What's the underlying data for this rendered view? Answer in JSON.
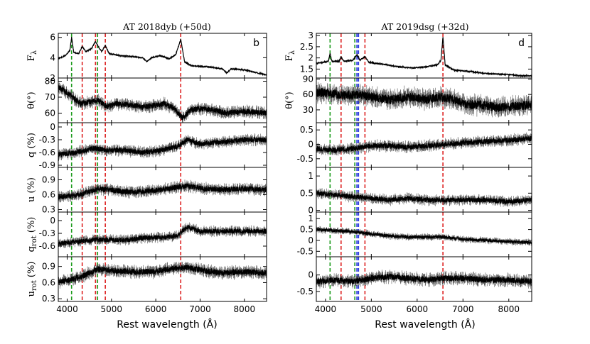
{
  "chart_data": {
    "type": "line",
    "x_label": "Rest wavelength (Å)",
    "xlim": [
      3800,
      8500
    ],
    "x_ticks": [
      4000,
      5000,
      6000,
      7000,
      8000
    ],
    "line_colors": {
      "green": "#1a9a1a",
      "red": "#dd2222",
      "blue": "#2233dd"
    },
    "columns": [
      {
        "title": "AT 2018dyb   (+50d)",
        "letter": "b",
        "vlines": [
          {
            "x": 4100,
            "color": "green"
          },
          {
            "x": 4340,
            "color": "red"
          },
          {
            "x": 4640,
            "color": "red"
          },
          {
            "x": 4686,
            "color": "green"
          },
          {
            "x": 4861,
            "color": "red"
          },
          {
            "x": 6563,
            "color": "red"
          }
        ],
        "panels": [
          {
            "ylabel": "Fλ",
            "ylim": [
              2,
              6.4
            ],
            "ticks": [
              2,
              4,
              6
            ],
            "base": [
              [
                3800,
                3.9
              ],
              [
                3960,
                4.2
              ],
              [
                4060,
                4.7
              ],
              [
                4100,
                6.0
              ],
              [
                4150,
                4.5
              ],
              [
                4260,
                4.4
              ],
              [
                4340,
                5.1
              ],
              [
                4420,
                4.6
              ],
              [
                4550,
                4.9
              ],
              [
                4640,
                5.6
              ],
              [
                4700,
                5.1
              ],
              [
                4780,
                4.6
              ],
              [
                4861,
                5.2
              ],
              [
                4950,
                4.4
              ],
              [
                5200,
                4.2
              ],
              [
                5500,
                4.1
              ],
              [
                5700,
                4.0
              ],
              [
                5800,
                3.6
              ],
              [
                5900,
                4.0
              ],
              [
                6100,
                4.2
              ],
              [
                6300,
                3.9
              ],
              [
                6450,
                4.3
              ],
              [
                6563,
                5.8
              ],
              [
                6650,
                3.6
              ],
              [
                6800,
                3.2
              ],
              [
                7200,
                3.1
              ],
              [
                7500,
                2.9
              ],
              [
                7600,
                2.5
              ],
              [
                7700,
                2.9
              ],
              [
                8000,
                2.8
              ],
              [
                8300,
                2.5
              ],
              [
                8500,
                2.3
              ]
            ],
            "noise": 0.05,
            "seed": 11
          },
          {
            "ylabel": "θ(°)",
            "ylim": [
              54,
              82
            ],
            "ticks": [
              60,
              70,
              80
            ],
            "base": [
              [
                3800,
                76
              ],
              [
                4000,
                73
              ],
              [
                4300,
                66
              ],
              [
                4500,
                67
              ],
              [
                4700,
                68
              ],
              [
                4900,
                64
              ],
              [
                5100,
                66
              ],
              [
                5400,
                65
              ],
              [
                5700,
                64
              ],
              [
                6000,
                65
              ],
              [
                6200,
                66
              ],
              [
                6400,
                63
              ],
              [
                6600,
                57
              ],
              [
                6800,
                62
              ],
              [
                7000,
                63
              ],
              [
                7300,
                62
              ],
              [
                7600,
                60
              ],
              [
                8000,
                61
              ],
              [
                8500,
                60
              ]
            ],
            "noise": 1.8,
            "seed": 21
          },
          {
            "ylabel": "q (%)",
            "ylim": [
              -0.95,
              0.1
            ],
            "ticks": [
              0.0,
              -0.3,
              -0.6,
              -0.9
            ],
            "base": [
              [
                3800,
                -0.65
              ],
              [
                4200,
                -0.6
              ],
              [
                4600,
                -0.5
              ],
              [
                4900,
                -0.55
              ],
              [
                5300,
                -0.55
              ],
              [
                5700,
                -0.6
              ],
              [
                6100,
                -0.55
              ],
              [
                6500,
                -0.45
              ],
              [
                6700,
                -0.3
              ],
              [
                7000,
                -0.4
              ],
              [
                7500,
                -0.35
              ],
              [
                8000,
                -0.3
              ],
              [
                8500,
                -0.3
              ]
            ],
            "noise": 0.06,
            "seed": 31
          },
          {
            "ylabel": "u (%)",
            "ylim": [
              0.25,
              1.15
            ],
            "ticks": [
              0.3,
              0.6,
              0.9
            ],
            "base": [
              [
                3800,
                0.55
              ],
              [
                4300,
                0.6
              ],
              [
                4700,
                0.72
              ],
              [
                5100,
                0.68
              ],
              [
                5500,
                0.65
              ],
              [
                5900,
                0.68
              ],
              [
                6300,
                0.72
              ],
              [
                6700,
                0.78
              ],
              [
                7100,
                0.72
              ],
              [
                7500,
                0.7
              ],
              [
                8000,
                0.72
              ],
              [
                8500,
                0.7
              ]
            ],
            "noise": 0.055,
            "seed": 41
          },
          {
            "ylabel": "qrot (%)",
            "ylim": [
              -0.85,
              0.2
            ],
            "ticks": [
              0.0,
              -0.3,
              -0.6
            ],
            "base": [
              [
                3800,
                -0.55
              ],
              [
                4200,
                -0.5
              ],
              [
                4600,
                -0.45
              ],
              [
                5000,
                -0.45
              ],
              [
                5400,
                -0.45
              ],
              [
                5800,
                -0.4
              ],
              [
                6200,
                -0.4
              ],
              [
                6500,
                -0.35
              ],
              [
                6700,
                -0.15
              ],
              [
                7000,
                -0.25
              ],
              [
                7500,
                -0.25
              ],
              [
                8000,
                -0.25
              ],
              [
                8500,
                -0.25
              ]
            ],
            "noise": 0.055,
            "seed": 51
          },
          {
            "ylabel": "urot (%)",
            "ylim": [
              0.25,
              1.08
            ],
            "ticks": [
              0.3,
              0.6,
              0.9
            ],
            "base": [
              [
                3800,
                0.6
              ],
              [
                4300,
                0.7
              ],
              [
                4700,
                0.85
              ],
              [
                5100,
                0.82
              ],
              [
                5500,
                0.8
              ],
              [
                5900,
                0.8
              ],
              [
                6300,
                0.85
              ],
              [
                6700,
                0.88
              ],
              [
                7100,
                0.82
              ],
              [
                7500,
                0.78
              ],
              [
                8000,
                0.8
              ],
              [
                8500,
                0.78
              ]
            ],
            "noise": 0.055,
            "seed": 61
          }
        ]
      },
      {
        "title": "AT 2019dsg   (+32d)",
        "letter": "d",
        "vlines": [
          {
            "x": 4100,
            "color": "green"
          },
          {
            "x": 4340,
            "color": "red"
          },
          {
            "x": 4640,
            "color": "green"
          },
          {
            "x": 4686,
            "color": "blue"
          },
          {
            "x": 4720,
            "color": "blue"
          },
          {
            "x": 4861,
            "color": "red"
          },
          {
            "x": 6563,
            "color": "red"
          }
        ],
        "panels": [
          {
            "ylabel": "Fλ",
            "ylim": [
              1.1,
              3.1
            ],
            "ticks": [
              1.5,
              2.0,
              2.5,
              3.0
            ],
            "base": [
              [
                3800,
                1.75
              ],
              [
                3950,
                1.8
              ],
              [
                4060,
                1.85
              ],
              [
                4100,
                2.2
              ],
              [
                4140,
                1.85
              ],
              [
                4300,
                1.85
              ],
              [
                4340,
                2.05
              ],
              [
                4400,
                1.85
              ],
              [
                4600,
                1.9
              ],
              [
                4686,
                2.15
              ],
              [
                4750,
                1.9
              ],
              [
                4861,
                2.05
              ],
              [
                4950,
                1.8
              ],
              [
                5300,
                1.7
              ],
              [
                5600,
                1.6
              ],
              [
                5900,
                1.55
              ],
              [
                6200,
                1.6
              ],
              [
                6450,
                1.7
              ],
              [
                6520,
                1.9
              ],
              [
                6563,
                2.95
              ],
              [
                6610,
                1.7
              ],
              [
                6800,
                1.45
              ],
              [
                7100,
                1.4
              ],
              [
                7500,
                1.3
              ],
              [
                8000,
                1.25
              ],
              [
                8300,
                1.2
              ],
              [
                8500,
                1.2
              ]
            ],
            "noise": 0.025,
            "seed": 12
          },
          {
            "ylabel": "θ(°)",
            "ylim": [
              5,
              92
            ],
            "ticks": [
              30,
              60,
              90
            ],
            "base": [
              [
                3800,
                65
              ],
              [
                4100,
                62
              ],
              [
                4400,
                58
              ],
              [
                4700,
                60
              ],
              [
                5000,
                55
              ],
              [
                5400,
                50
              ],
              [
                5800,
                55
              ],
              [
                6200,
                50
              ],
              [
                6500,
                55
              ],
              [
                6800,
                50
              ],
              [
                7100,
                40
              ],
              [
                7400,
                40
              ],
              [
                7700,
                35
              ],
              [
                8000,
                35
              ],
              [
                8500,
                40
              ]
            ],
            "noise": 9,
            "seed": 22
          },
          {
            "ylabel": "",
            "ylim": [
              -0.8,
              0.75
            ],
            "ticks": [
              -0.5,
              0.0,
              0.5
            ],
            "base": [
              [
                3800,
                -0.15
              ],
              [
                4200,
                -0.2
              ],
              [
                4600,
                -0.15
              ],
              [
                5000,
                -0.05
              ],
              [
                5400,
                -0.05
              ],
              [
                5800,
                -0.1
              ],
              [
                6200,
                -0.05
              ],
              [
                6600,
                0.0
              ],
              [
                7000,
                0.05
              ],
              [
                7500,
                0.1
              ],
              [
                8000,
                0.15
              ],
              [
                8500,
                0.2
              ]
            ],
            "noise": 0.09,
            "seed": 32
          },
          {
            "ylabel": "",
            "ylim": [
              -0.05,
              1.25
            ],
            "ticks": [
              0.0,
              0.5,
              1.0
            ],
            "base": [
              [
                3800,
                0.5
              ],
              [
                4200,
                0.45
              ],
              [
                4600,
                0.4
              ],
              [
                5000,
                0.35
              ],
              [
                5400,
                0.3
              ],
              [
                5800,
                0.35
              ],
              [
                6200,
                0.3
              ],
              [
                6600,
                0.3
              ],
              [
                7000,
                0.3
              ],
              [
                7500,
                0.3
              ],
              [
                8000,
                0.25
              ],
              [
                8500,
                0.3
              ]
            ],
            "noise": 0.07,
            "seed": 42
          },
          {
            "ylabel": "",
            "ylim": [
              -0.75,
              1.3
            ],
            "ticks": [
              -0.5,
              0.0,
              0.5,
              1.0
            ],
            "base": [
              [
                3800,
                0.5
              ],
              [
                4200,
                0.45
              ],
              [
                4600,
                0.4
              ],
              [
                5000,
                0.3
              ],
              [
                5400,
                0.2
              ],
              [
                5800,
                0.15
              ],
              [
                6200,
                0.15
              ],
              [
                6600,
                0.15
              ],
              [
                7000,
                0.05
              ],
              [
                7500,
                0.0
              ],
              [
                8000,
                -0.05
              ],
              [
                8500,
                -0.1
              ]
            ],
            "noise": 0.07,
            "seed": 52
          },
          {
            "ylabel": "",
            "ylim": [
              -0.8,
              0.55
            ],
            "ticks": [
              -0.5,
              0.0
            ],
            "base": [
              [
                3800,
                -0.2
              ],
              [
                4200,
                -0.15
              ],
              [
                4600,
                -0.2
              ],
              [
                5000,
                -0.1
              ],
              [
                5400,
                -0.05
              ],
              [
                5800,
                -0.1
              ],
              [
                6200,
                -0.15
              ],
              [
                6600,
                -0.1
              ],
              [
                7000,
                -0.1
              ],
              [
                7500,
                -0.15
              ],
              [
                8000,
                -0.15
              ],
              [
                8500,
                -0.2
              ]
            ],
            "noise": 0.09,
            "seed": 62
          }
        ]
      }
    ]
  }
}
